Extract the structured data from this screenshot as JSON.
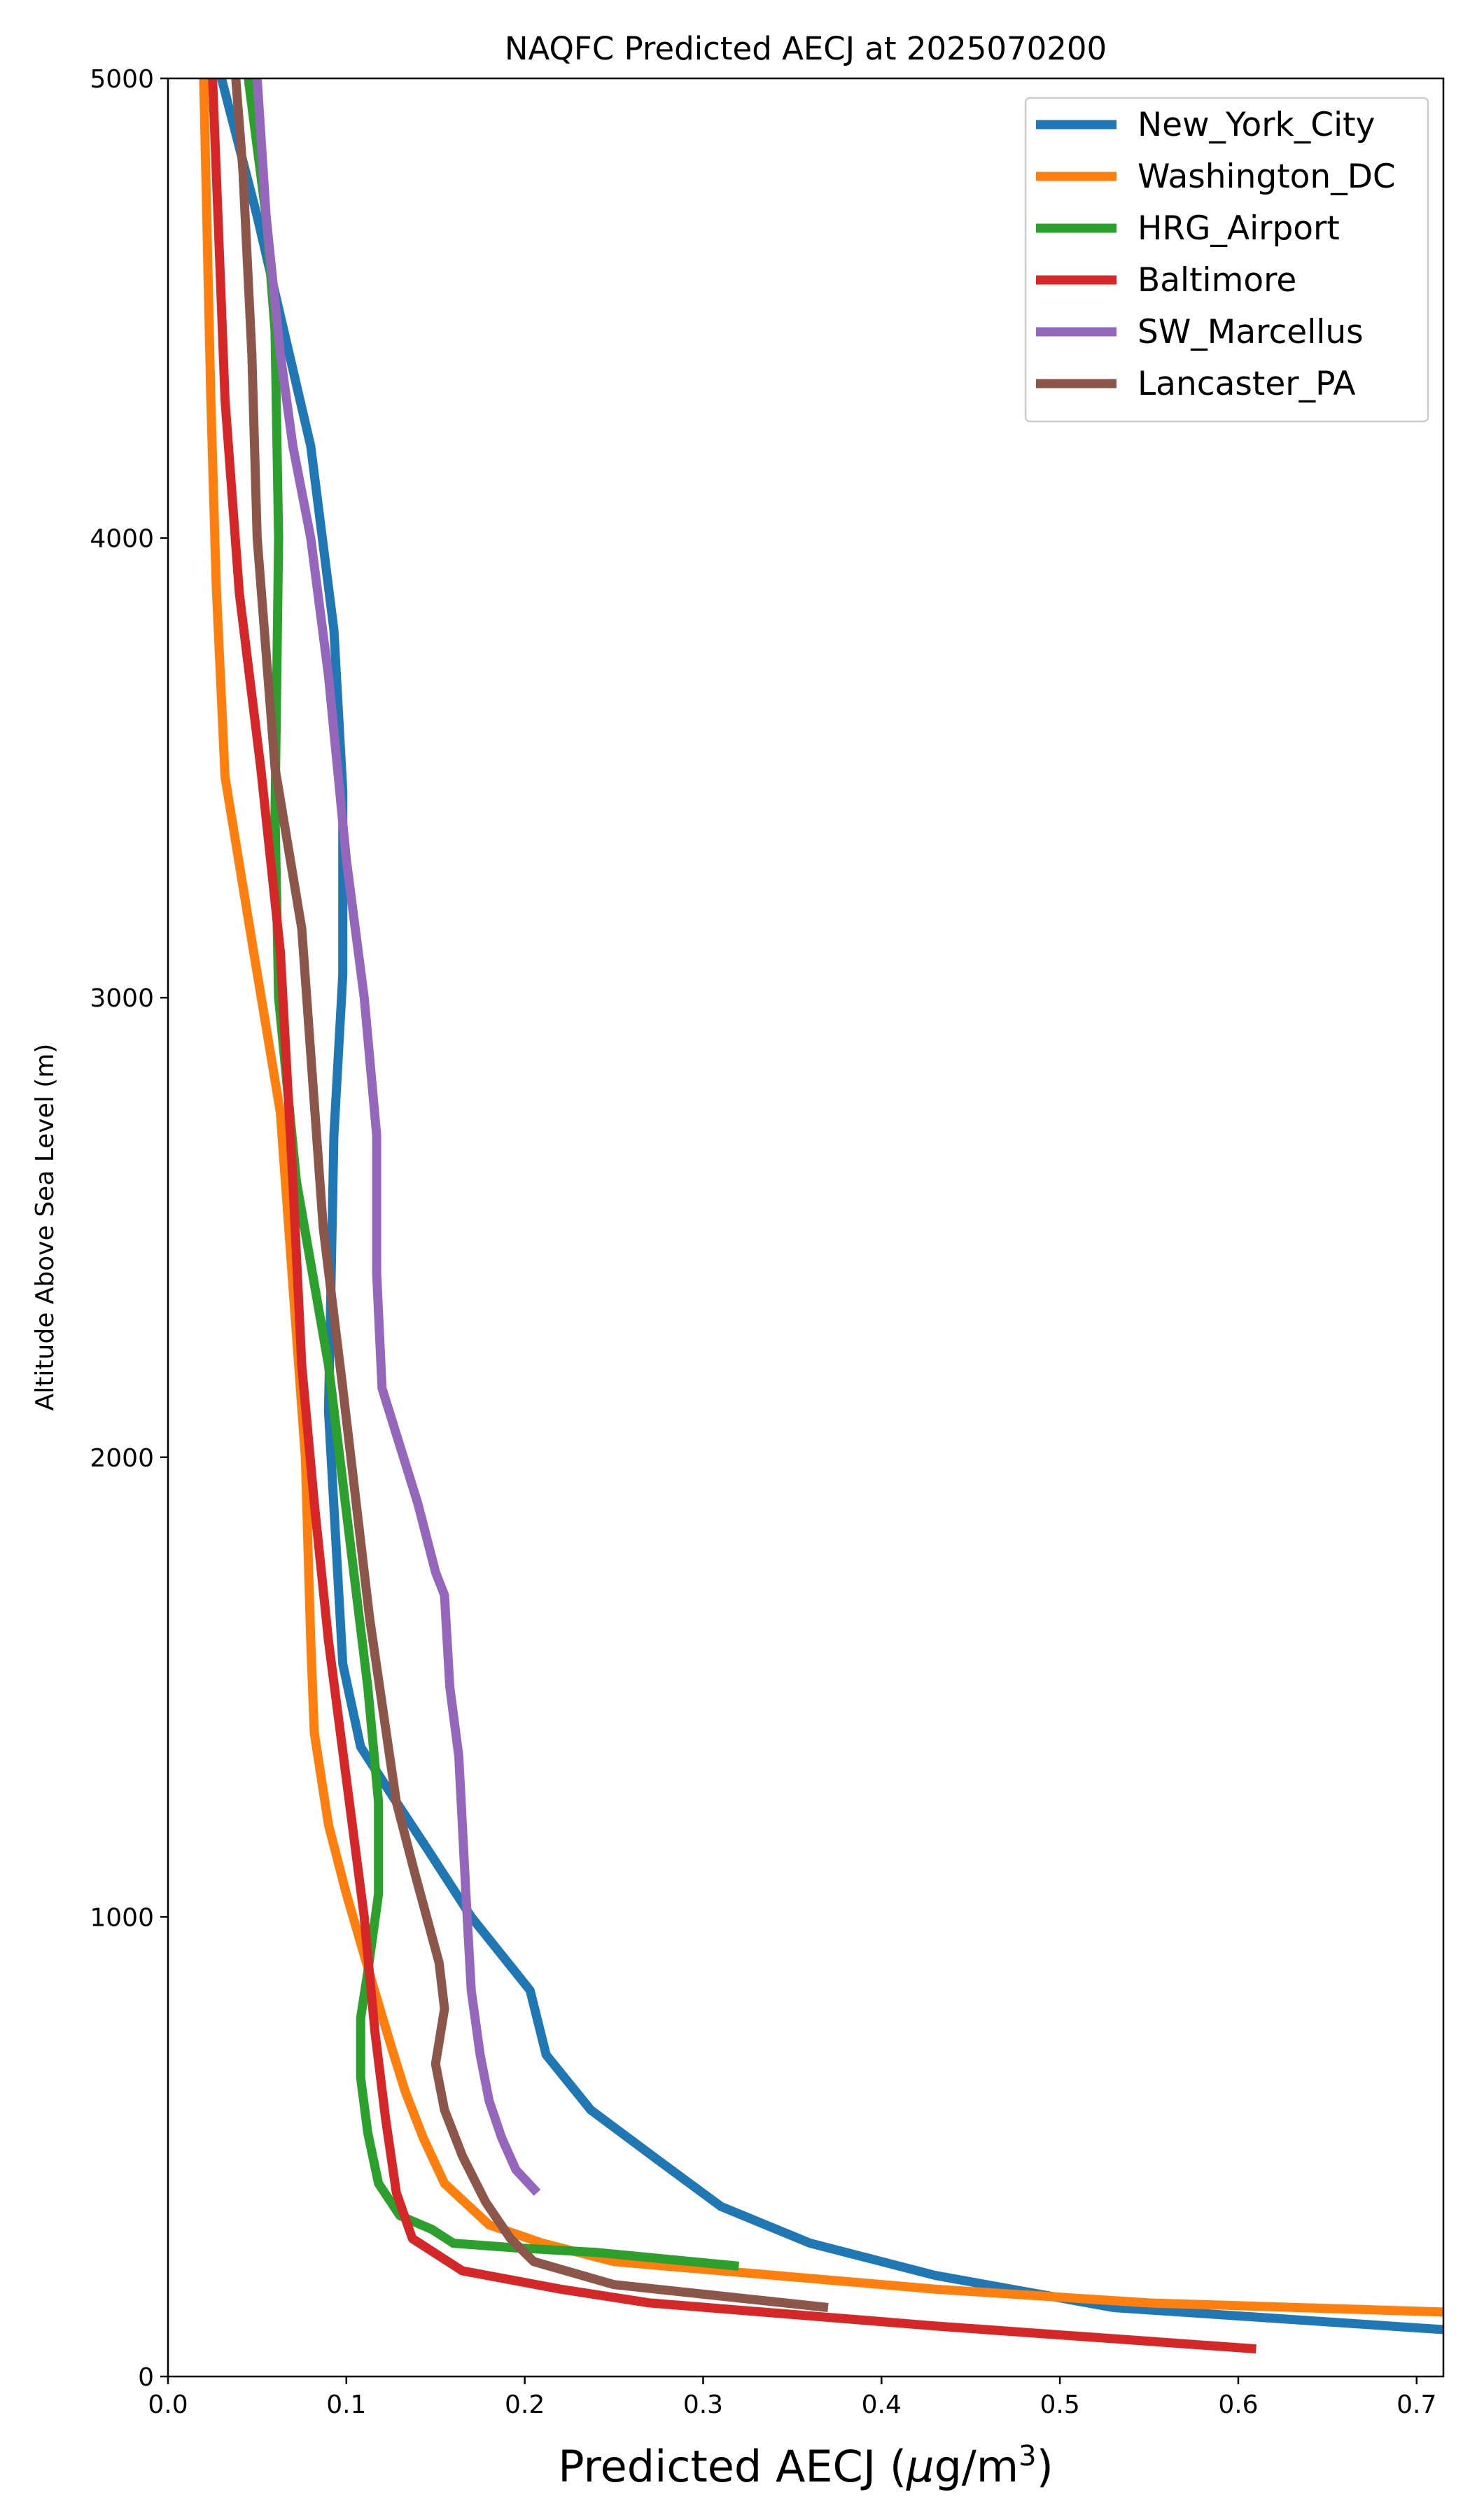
{
  "chart_data": {
    "type": "line",
    "title": "NAQFC Predicted AECJ at 2025070200",
    "xlabel": "Predicted AECJ (μg/m³)",
    "ylabel": "Altitude Above Sea Level (m)",
    "xlim": [
      0,
      0.715
    ],
    "ylim": [
      0,
      5000
    ],
    "xticks": [
      "0.0",
      "0.1",
      "0.2",
      "0.3",
      "0.4",
      "0.5",
      "0.6",
      "0.7"
    ],
    "yticks": [
      "0",
      "1000",
      "2000",
      "3000",
      "4000",
      "5000"
    ],
    "grid": false,
    "legend": "top-right",
    "series": [
      {
        "name": "New_York_City",
        "color": "#1f77b4",
        "x": [
          0.8,
          0.53,
          0.43,
          0.36,
          0.31,
          0.275,
          0.237,
          0.212,
          0.203,
          0.17,
          0.145,
          0.128,
          0.108,
          0.098,
          0.09,
          0.093,
          0.098,
          0.098,
          0.093,
          0.08,
          0.05,
          0.03
        ],
        "y": [
          80,
          150,
          220,
          290,
          370,
          470,
          580,
          700,
          840,
          1000,
          1150,
          1250,
          1370,
          1550,
          2100,
          2700,
          3050,
          3450,
          3800,
          4200,
          4700,
          5000
        ]
      },
      {
        "name": "Washington_DC",
        "color": "#ff7f0e",
        "x": [
          0.8,
          0.55,
          0.43,
          0.34,
          0.25,
          0.21,
          0.18,
          0.155,
          0.143,
          0.133,
          0.125,
          0.115,
          0.1,
          0.09,
          0.082,
          0.08,
          0.077,
          0.063,
          0.048,
          0.032,
          0.027,
          0.024,
          0.02
        ],
        "y": [
          130,
          160,
          190,
          220,
          250,
          290,
          330,
          420,
          520,
          620,
          720,
          850,
          1050,
          1200,
          1400,
          1600,
          2000,
          2750,
          3100,
          3480,
          3900,
          4300,
          5000
        ]
      },
      {
        "name": "HRG_Airport",
        "color": "#2ca02c",
        "x": [
          0.32,
          0.24,
          0.195,
          0.16,
          0.148,
          0.13,
          0.118,
          0.112,
          0.108,
          0.108,
          0.112,
          0.118,
          0.118,
          0.112,
          0.09,
          0.072,
          0.062,
          0.06,
          0.062,
          0.06,
          0.055,
          0.045
        ],
        "y": [
          240,
          270,
          280,
          290,
          320,
          350,
          420,
          530,
          650,
          780,
          880,
          1050,
          1250,
          1500,
          2200,
          2600,
          3000,
          3400,
          4000,
          4450,
          4700,
          5000
        ]
      },
      {
        "name": "Baltimore",
        "color": "#d62728",
        "x": [
          0.61,
          0.43,
          0.27,
          0.22,
          0.165,
          0.137,
          0.128,
          0.122,
          0.116,
          0.11,
          0.1,
          0.09,
          0.082,
          0.075,
          0.07,
          0.063,
          0.052,
          0.04,
          0.032,
          0.028,
          0.025
        ],
        "y": [
          60,
          110,
          160,
          190,
          230,
          300,
          400,
          560,
          750,
          1000,
          1300,
          1600,
          1900,
          2200,
          2600,
          3100,
          3500,
          3880,
          4300,
          4700,
          5000
        ]
      },
      {
        "name": "SW_Marcellus",
        "color": "#9467bd",
        "x": [
          0.207,
          0.195,
          0.187,
          0.18,
          0.175,
          0.17,
          0.167,
          0.163,
          0.158,
          0.155,
          0.15,
          0.14,
          0.12,
          0.117,
          0.117,
          0.11,
          0.1,
          0.09,
          0.08,
          0.07,
          0.063,
          0.055,
          0.05
        ],
        "y": [
          400,
          450,
          520,
          600,
          700,
          840,
          1050,
          1350,
          1500,
          1700,
          1750,
          1900,
          2150,
          2400,
          2700,
          3000,
          3300,
          3700,
          4000,
          4200,
          4400,
          4700,
          5000
        ]
      },
      {
        "name": "Lancaster_PA",
        "color": "#8c564b",
        "x": [
          0.37,
          0.25,
          0.205,
          0.192,
          0.178,
          0.165,
          0.155,
          0.15,
          0.155,
          0.152,
          0.138,
          0.128,
          0.113,
          0.098,
          0.087,
          0.075,
          0.06,
          0.05,
          0.047,
          0.042,
          0.038
        ],
        "y": [
          150,
          200,
          250,
          300,
          380,
          480,
          580,
          680,
          800,
          900,
          1100,
          1250,
          1650,
          2150,
          2500,
          3150,
          3500,
          4000,
          4400,
          4800,
          5000
        ]
      }
    ]
  }
}
